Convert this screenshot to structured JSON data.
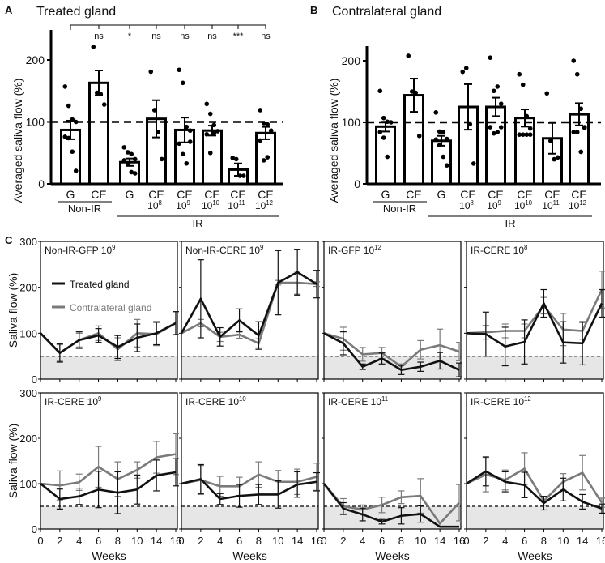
{
  "colors": {
    "treated": "#111111",
    "contra": "#7a7a7a",
    "shade": "#e6e6e6",
    "bar": "#ffffff"
  },
  "chart_data": [
    {
      "panel_letter": "A",
      "type": "bar",
      "title": "Treated gland",
      "ylabel": "Averaged saliva flow (%)",
      "ylim": [
        0,
        250
      ],
      "yticks": [
        "0",
        "100",
        "200"
      ],
      "ytick_values": [
        0,
        100,
        200
      ],
      "reference_line": 100,
      "categories": [
        {
          "top": "G",
          "base": "",
          "exp": ""
        },
        {
          "top": "CE",
          "base": "",
          "exp": ""
        },
        {
          "top": "G",
          "base": "",
          "exp": ""
        },
        {
          "top": "CE",
          "base": "10",
          "exp": "8"
        },
        {
          "top": "CE",
          "base": "10",
          "exp": "9"
        },
        {
          "top": "CE",
          "base": "10",
          "exp": "10"
        },
        {
          "top": "CE",
          "base": "10",
          "exp": "11"
        },
        {
          "top": "CE",
          "base": "10",
          "exp": "12"
        }
      ],
      "values": [
        87,
        163,
        35,
        105,
        87,
        86,
        23,
        82
      ],
      "errors": [
        15,
        20,
        6,
        30,
        20,
        8,
        10,
        10
      ],
      "points": [
        [
          157,
          126,
          104,
          100,
          76,
          74,
          52,
          21
        ],
        [
          221,
          147,
          145,
          128
        ],
        [
          59,
          51,
          48,
          40,
          38,
          33,
          19,
          17
        ],
        [
          181,
          119,
          84,
          40
        ],
        [
          184,
          163,
          92,
          68,
          65,
          48,
          33,
          86
        ],
        [
          129,
          113,
          95,
          85,
          80,
          50,
          82
        ],
        [
          42,
          40,
          13,
          13
        ],
        [
          119,
          98,
          96,
          86,
          70,
          38,
          43
        ]
      ],
      "significance": [
        "ns",
        "*",
        "ns",
        "ns",
        "ns",
        "***",
        "ns"
      ],
      "groups": [
        {
          "label": "Non-IR",
          "from": 0,
          "to": 1
        },
        {
          "label": "IR",
          "from": 2,
          "to": 7
        }
      ]
    },
    {
      "panel_letter": "B",
      "type": "bar",
      "title": "Contralateral gland",
      "ylabel": "Averaged saliva flow (%)",
      "ylim": [
        0,
        250
      ],
      "yticks": [
        "0",
        "100",
        "200"
      ],
      "ytick_values": [
        0,
        100,
        200
      ],
      "reference_line": 100,
      "categories": [
        {
          "top": "G",
          "base": "",
          "exp": ""
        },
        {
          "top": "CE",
          "base": "",
          "exp": ""
        },
        {
          "top": "G",
          "base": "",
          "exp": ""
        },
        {
          "top": "CE",
          "base": "10",
          "exp": "8"
        },
        {
          "top": "CE",
          "base": "10",
          "exp": "9"
        },
        {
          "top": "CE",
          "base": "10",
          "exp": "10"
        },
        {
          "top": "CE",
          "base": "10",
          "exp": "11"
        },
        {
          "top": "CE",
          "base": "10",
          "exp": "12"
        }
      ],
      "values": [
        93,
        144,
        70,
        125,
        125,
        107,
        74,
        113
      ],
      "errors": [
        8,
        27,
        8,
        37,
        15,
        14,
        25,
        18
      ],
      "points": [
        [
          151,
          107,
          101,
          100,
          84,
          75,
          44
        ],
        [
          208,
          150,
          148,
          78
        ],
        [
          116,
          85,
          84,
          73,
          72,
          63,
          44,
          30
        ],
        [
          182,
          188,
          97,
          33
        ],
        [
          205,
          151,
          158,
          130,
          92,
          82,
          84,
          92
        ],
        [
          178,
          161,
          110,
          90,
          80,
          80,
          80,
          80
        ],
        [
          147,
          70,
          40,
          43
        ],
        [
          200,
          178,
          122,
          92,
          84,
          84,
          52,
          91
        ]
      ],
      "significance": [],
      "groups": [
        {
          "label": "Non-IR",
          "from": 0,
          "to": 1
        },
        {
          "label": "IR",
          "from": 2,
          "to": 7
        }
      ]
    },
    {
      "panel_letter": "C",
      "type": "line",
      "xlabel": "Weeks",
      "ylabel": "Saliva flow (%)",
      "ylim": [
        0,
        300
      ],
      "yticks": [
        "0",
        "100",
        "200",
        "300"
      ],
      "ytick_values": [
        0,
        100,
        200,
        300
      ],
      "x": [
        "0",
        "2",
        "4",
        "6",
        "8",
        "10",
        "14",
        "16"
      ],
      "threshold_line": 50,
      "legend": {
        "treated": "Treated gland",
        "contra": "Contralateral gland"
      },
      "panels": [
        {
          "base": "Non-IR-GFP 10",
          "exp": "9",
          "treated": [
            100,
            57,
            85,
            95,
            70,
            90,
            100,
            122
          ],
          "contra": [
            100,
            57,
            85,
            100,
            65,
            100,
            98,
            122
          ],
          "terr": [
            0,
            20,
            18,
            15,
            25,
            30,
            25,
            25
          ],
          "cerr": [
            0,
            18,
            15,
            16,
            25,
            30,
            25,
            25
          ]
        },
        {
          "base": "Non-IR-CERE 10",
          "exp": "9",
          "treated": [
            100,
            175,
            92,
            128,
            95,
            210,
            233,
            207
          ],
          "contra": [
            100,
            122,
            92,
            97,
            78,
            210,
            210,
            207
          ],
          "terr": [
            0,
            85,
            20,
            25,
            30,
            70,
            50,
            30
          ],
          "cerr": [
            0,
            8,
            10,
            8,
            10,
            5,
            25,
            5
          ]
        },
        {
          "base": "IR-GFP 10",
          "exp": "12",
          "treated": [
            100,
            78,
            27,
            45,
            20,
            27,
            40,
            20
          ],
          "contra": [
            100,
            88,
            54,
            57,
            27,
            64,
            74,
            60
          ],
          "terr": [
            0,
            25,
            6,
            12,
            10,
            10,
            18,
            15
          ],
          "cerr": [
            0,
            25,
            15,
            12,
            6,
            20,
            35,
            20
          ]
        },
        {
          "base": "IR-CERE 10",
          "exp": "8",
          "treated": [
            100,
            98,
            71,
            81,
            165,
            80,
            78,
            165
          ],
          "contra": [
            100,
            102,
            105,
            105,
            160,
            108,
            105,
            195
          ],
          "terr": [
            0,
            48,
            42,
            48,
            30,
            45,
            47,
            30
          ],
          "cerr": [
            0,
            15,
            15,
            15,
            18,
            35,
            18,
            40
          ]
        },
        {
          "base": "IR-CERE 10",
          "exp": "9",
          "treated": [
            100,
            66,
            72,
            87,
            80,
            87,
            118,
            125
          ],
          "contra": [
            100,
            96,
            103,
            137,
            110,
            130,
            158,
            165
          ],
          "terr": [
            0,
            22,
            18,
            40,
            46,
            32,
            34,
            30
          ],
          "cerr": [
            0,
            32,
            18,
            45,
            38,
            18,
            35,
            45
          ]
        },
        {
          "base": "IR-CERE 10",
          "exp": "10",
          "treated": [
            100,
            110,
            66,
            73,
            76,
            76,
            98,
            104
          ],
          "contra": [
            100,
            108,
            94,
            94,
            120,
            104,
            104,
            115
          ],
          "terr": [
            0,
            32,
            12,
            25,
            22,
            30,
            28,
            20
          ],
          "cerr": [
            0,
            32,
            22,
            20,
            28,
            25,
            28,
            30
          ]
        },
        {
          "base": "IR-CERE 10",
          "exp": "11",
          "treated": [
            100,
            45,
            32,
            16,
            29,
            33,
            5,
            5
          ],
          "contra": [
            100,
            50,
            43,
            53,
            70,
            73,
            12,
            58
          ],
          "terr": [
            0,
            13,
            14,
            5,
            18,
            18,
            0,
            0
          ],
          "cerr": [
            0,
            17,
            10,
            17,
            14,
            38,
            0,
            40
          ]
        },
        {
          "base": "IR-CERE 10",
          "exp": "12",
          "treated": [
            100,
            127,
            104,
            97,
            57,
            87,
            60,
            45
          ],
          "contra": [
            100,
            120,
            108,
            133,
            62,
            104,
            124,
            58
          ],
          "terr": [
            0,
            32,
            22,
            28,
            15,
            25,
            16,
            10
          ],
          "cerr": [
            0,
            38,
            22,
            35,
            10,
            18,
            38,
            10
          ]
        }
      ]
    }
  ]
}
